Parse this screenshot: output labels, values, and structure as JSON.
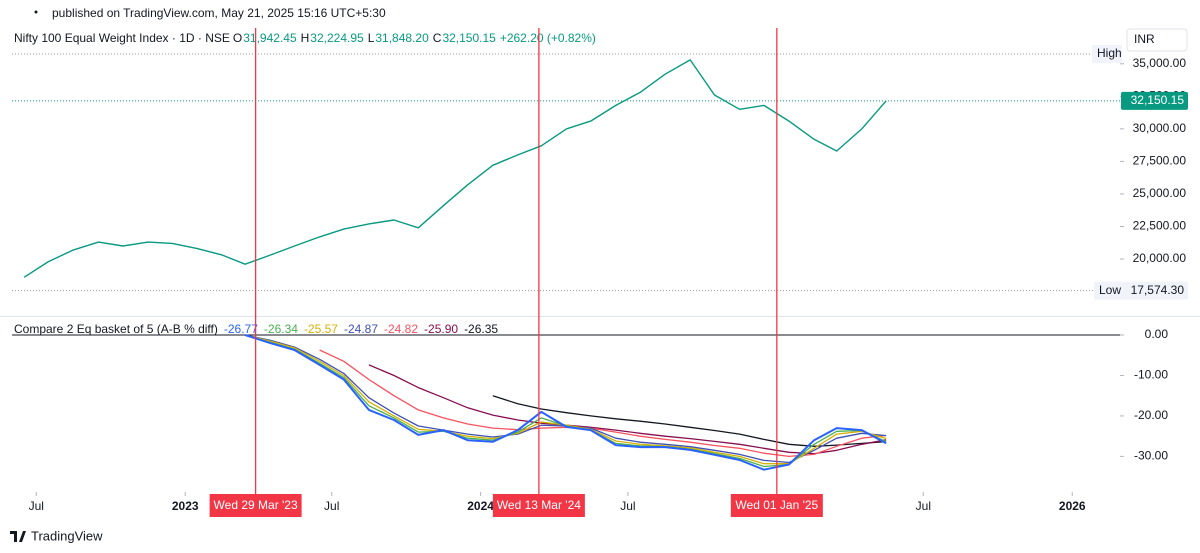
{
  "page": {
    "published": "published on TradingView.com, May 21, 2025 15:16 UTC+5:30",
    "brand": "TradingView"
  },
  "chart_data": [
    {
      "type": "line",
      "title": "Nifty 100 Equal Weight Index · 1D · NSE",
      "ohlc_labels": [
        "O",
        "H",
        "L",
        "C"
      ],
      "ohlc_values": [
        31942.45,
        32224.95,
        31848.2,
        32150.15
      ],
      "ohlc_value_labels": [
        "31,942.45",
        "32,224.95",
        "31,848.20",
        "32,150.15"
      ],
      "change": "+262.20 (+0.82%)",
      "currency": "INR",
      "color": "#089981",
      "x": [
        "2022-06",
        "2022-07",
        "2022-08",
        "2022-09",
        "2022-10",
        "2022-11",
        "2022-12",
        "2023-01",
        "2023-02",
        "2023-03",
        "2023-04",
        "2023-05",
        "2023-06",
        "2023-07",
        "2023-08",
        "2023-09",
        "2023-10",
        "2023-11",
        "2023-12",
        "2024-01",
        "2024-02",
        "2024-03",
        "2024-04",
        "2024-05",
        "2024-06",
        "2024-07",
        "2024-08",
        "2024-09",
        "2024-10",
        "2024-11",
        "2024-12",
        "2025-01",
        "2025-02",
        "2025-03",
        "2025-04",
        "2025-05"
      ],
      "values": [
        18600,
        19800,
        20700,
        21300,
        21000,
        21300,
        21200,
        20800,
        20300,
        19600,
        20300,
        21000,
        21700,
        22300,
        22700,
        23000,
        22400,
        24100,
        25700,
        27200,
        28000,
        28700,
        30000,
        30600,
        31800,
        32800,
        34200,
        35300,
        32600,
        31500,
        31800,
        30600,
        29200,
        28300,
        30000,
        32150.15
      ],
      "xlim": [
        "2022-06",
        "2026-03"
      ],
      "ylim": [
        15700,
        37750
      ],
      "yticks": [
        {
          "value": 20000,
          "label": "20,000.00"
        },
        {
          "value": 22500,
          "label": "22,500.00"
        },
        {
          "value": 25000,
          "label": "25,000.00"
        },
        {
          "value": 27500,
          "label": "27,500.00"
        },
        {
          "value": 30000,
          "label": "30,000.00"
        },
        {
          "value": 32500,
          "label": "32,500.00"
        },
        {
          "value": 35000,
          "label": "35,000.00"
        }
      ],
      "grid": false,
      "high": {
        "label": "High",
        "value": 35750
      },
      "low": {
        "label": "Low",
        "value": 17574.3,
        "value_label": "17,574.30"
      },
      "last": {
        "value": 32150.15,
        "value_label": "32,150.15",
        "color": "#089981"
      },
      "markers": [
        {
          "x": "2023-03-29",
          "label": "Wed 29 Mar '23"
        },
        {
          "x": "2024-03-13",
          "label": "Wed 13 Mar '24"
        },
        {
          "x": "2025-01-01",
          "label": "Wed 01 Jan '25"
        }
      ],
      "marker_color": "#f23645"
    },
    {
      "type": "line",
      "title": "Compare 2 Eq basket of 5 (A-B % diff)",
      "legend_values": [
        -26.77,
        -26.34,
        -25.57,
        -24.87,
        -24.82,
        -25.9,
        -26.35
      ],
      "legend_value_labels": [
        "-26.77",
        "-26.34",
        "-25.57",
        "-24.87",
        "-24.82",
        "-25.90",
        "-26.35"
      ],
      "x": [
        "2023-03",
        "2023-04",
        "2023-05",
        "2023-06",
        "2023-07",
        "2023-08",
        "2023-09",
        "2023-10",
        "2023-11",
        "2023-12",
        "2024-01",
        "2024-02",
        "2024-03",
        "2024-04",
        "2024-05",
        "2024-06",
        "2024-07",
        "2024-08",
        "2024-09",
        "2024-10",
        "2024-11",
        "2024-12",
        "2025-01",
        "2025-02",
        "2025-03",
        "2025-04",
        "2025-05"
      ],
      "series": [
        {
          "color": "#2962ff",
          "values": [
            0,
            -2,
            -3.7,
            -7.4,
            -11,
            -18.5,
            -21,
            -24.7,
            -23.5,
            -26,
            -26.4,
            -23.5,
            -19,
            -22.7,
            -23.5,
            -27.2,
            -27.7,
            -27.7,
            -28.4,
            -29.6,
            -30.9,
            -33.3,
            -32,
            -26,
            -23,
            -23.5,
            -26.77
          ]
        },
        {
          "color": "#4caf50",
          "values": [
            0,
            -1.8,
            -3.5,
            -7,
            -10.5,
            -17.5,
            -20.5,
            -24,
            -23.8,
            -25.5,
            -26,
            -24,
            -20.5,
            -22.5,
            -23.5,
            -26.8,
            -27.4,
            -27.6,
            -28.2,
            -29.3,
            -30.5,
            -32.5,
            -32,
            -27,
            -23.8,
            -23.6,
            -26.34
          ]
        },
        {
          "color": "#d4b106",
          "values": [
            0,
            -1.5,
            -3.2,
            -6.5,
            -10,
            -16.5,
            -20,
            -23.3,
            -23.8,
            -25,
            -25.6,
            -24.3,
            -21.5,
            -22.3,
            -23.3,
            -26.2,
            -27,
            -27.4,
            -27.9,
            -29,
            -30,
            -31.8,
            -31.8,
            -28,
            -24.5,
            -23.8,
            -25.57
          ]
        },
        {
          "color": "#3f51b5",
          "values": [
            0,
            -1.3,
            -3,
            -6,
            -9.5,
            -15.5,
            -19.3,
            -22.5,
            -23.5,
            -24.5,
            -25.2,
            -24.5,
            -22.3,
            -22.5,
            -23,
            -25.5,
            -26.5,
            -27,
            -27.6,
            -28.5,
            -29.5,
            -31,
            -31.5,
            -28.5,
            -25.5,
            -24.3,
            -24.87
          ]
        },
        {
          "color": "#f7525f",
          "values": [
            null,
            null,
            null,
            -3.7,
            -6.5,
            -11,
            -15,
            -18.5,
            -20.5,
            -22,
            -23,
            -23.4,
            -23,
            -22.8,
            -23,
            -24,
            -25,
            -25.8,
            -26.5,
            -27.3,
            -28,
            -29.2,
            -30,
            -29.5,
            -27.5,
            -25.5,
            -24.82
          ]
        },
        {
          "color": "#880e4f",
          "values": [
            null,
            null,
            null,
            null,
            null,
            -7.4,
            -10,
            -13,
            -15.5,
            -18,
            -19.8,
            -21,
            -21.8,
            -22.3,
            -22.8,
            -23.5,
            -24.3,
            -25,
            -25.6,
            -26.3,
            -27,
            -28,
            -29,
            -29.3,
            -28.5,
            -27,
            -25.9
          ]
        },
        {
          "color": "#131722",
          "values": [
            null,
            null,
            null,
            null,
            null,
            null,
            null,
            null,
            null,
            null,
            -15,
            -17,
            -18.3,
            -19.2,
            -20,
            -20.7,
            -21.3,
            -22,
            -22.8,
            -23.6,
            -24.5,
            -25.8,
            -27,
            -27.5,
            -27.2,
            -26.8,
            -26.35
          ]
        }
      ],
      "xlim": [
        "2022-06",
        "2026-03"
      ],
      "ylim": [
        -38.8,
        4.2
      ],
      "yticks": [
        {
          "value": 0,
          "label": "0.00"
        },
        {
          "value": -10,
          "label": "-10.00"
        },
        {
          "value": -20,
          "label": "-20.00"
        },
        {
          "value": -30,
          "label": "-30.00"
        }
      ],
      "zero_line": true,
      "xticks": [
        {
          "value": "2022-07",
          "label": "Jul"
        },
        {
          "value": "2023-01",
          "label": "2023"
        },
        {
          "value": "2023-07",
          "label": "Jul"
        },
        {
          "value": "2024-01",
          "label": "2024"
        },
        {
          "value": "2024-07",
          "label": "Jul"
        },
        {
          "value": "2025-07",
          "label": "Jul"
        },
        {
          "value": "2026-01",
          "label": "2026"
        }
      ]
    }
  ]
}
